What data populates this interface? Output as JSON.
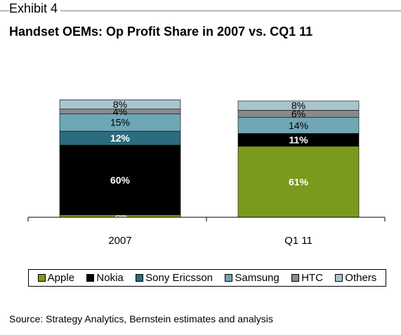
{
  "header": {
    "exhibit": "Exhibit 4",
    "title": "Handset OEMs: Op Profit Share in 2007 vs. CQ1 11"
  },
  "source": "Source: Strategy Analytics, Bernstein estimates and analysis",
  "colors": {
    "Apple": "#7a9a1e",
    "Nokia": "#000000",
    "Sony Ericsson": "#2b6c7e",
    "Samsung": "#6fa7b7",
    "HTC": "#8a8a8a",
    "Others": "#a9c4cf"
  },
  "chart_data": {
    "type": "bar",
    "stacked": true,
    "categories": [
      "2007",
      "Q1 11"
    ],
    "series": [
      {
        "name": "Apple",
        "values": [
          2,
          61
        ],
        "labels": [
          "2%",
          "61%"
        ]
      },
      {
        "name": "Nokia",
        "values": [
          60,
          11
        ],
        "labels": [
          "60%",
          "11%"
        ]
      },
      {
        "name": "Sony Ericsson",
        "values": [
          12,
          0
        ],
        "labels": [
          "12%",
          "0%"
        ]
      },
      {
        "name": "Samsung",
        "values": [
          15,
          14
        ],
        "labels": [
          "15%",
          "14%"
        ]
      },
      {
        "name": "HTC",
        "values": [
          4,
          6
        ],
        "labels": [
          "4%",
          "6%"
        ]
      },
      {
        "name": "Others",
        "values": [
          8,
          8
        ],
        "labels": [
          "8%",
          "8%"
        ]
      }
    ],
    "ylim": [
      0,
      100
    ],
    "grid": false,
    "legend": "bottom"
  }
}
